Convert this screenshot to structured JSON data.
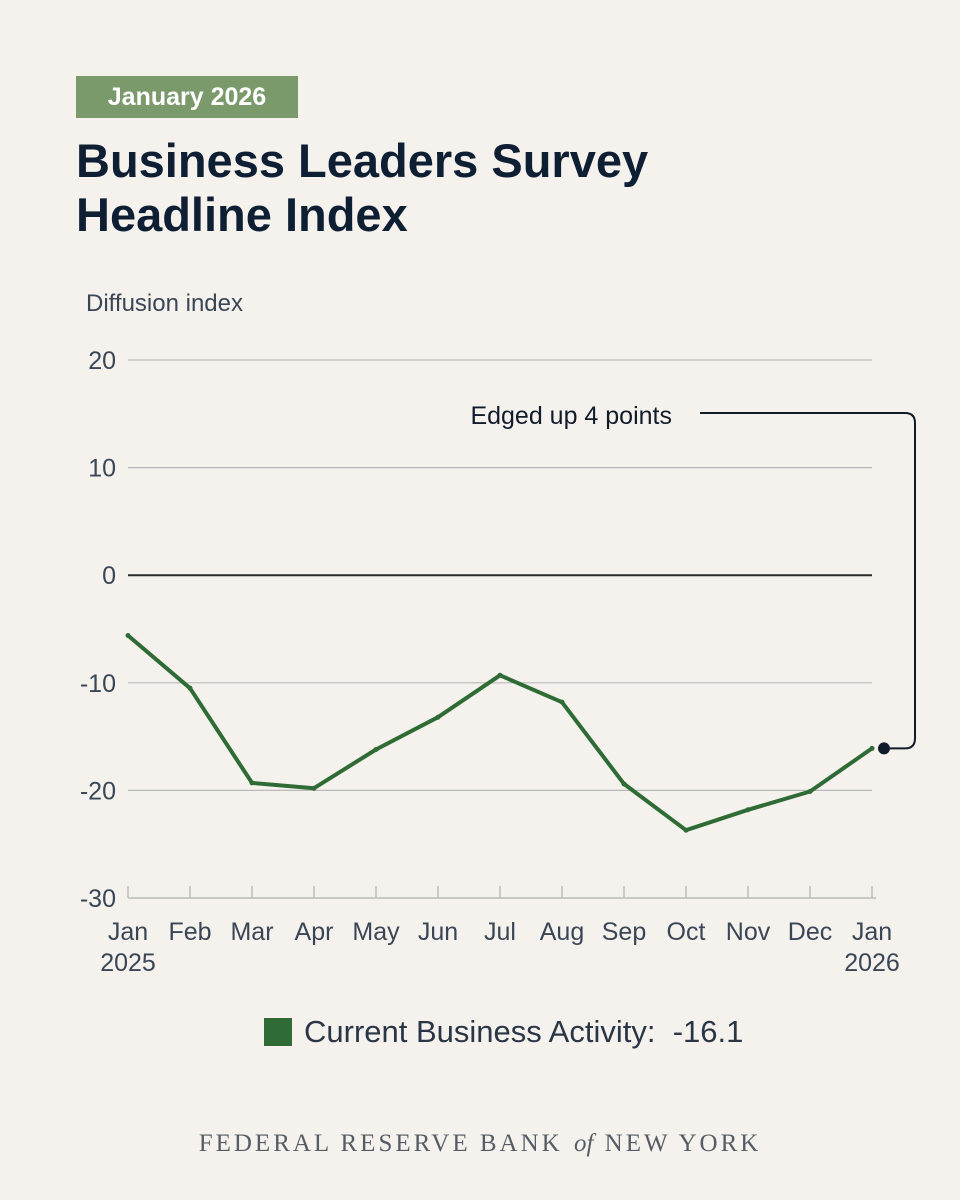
{
  "header": {
    "badge": "January 2026",
    "title_line1": "Business Leaders Survey",
    "title_line2": "Headline Index"
  },
  "chart_data": {
    "type": "line",
    "ylabel": "Diffusion index",
    "ylim": [
      -30,
      20
    ],
    "yticks": [
      20,
      10,
      0,
      -10,
      -20,
      -30
    ],
    "grid": true,
    "x": [
      "Jan 2025",
      "Feb",
      "Mar",
      "Apr",
      "May",
      "Jun",
      "Jul",
      "Aug",
      "Sep",
      "Oct",
      "Nov",
      "Dec",
      "Jan 2026"
    ],
    "tick_labels": [
      [
        "Jan",
        "2025"
      ],
      [
        "Feb"
      ],
      [
        "Mar"
      ],
      [
        "Apr"
      ],
      [
        "May"
      ],
      [
        "Jun"
      ],
      [
        "Jul"
      ],
      [
        "Aug"
      ],
      [
        "Sep"
      ],
      [
        "Oct"
      ],
      [
        "Nov"
      ],
      [
        "Dec"
      ],
      [
        "Jan",
        "2026"
      ]
    ],
    "series": [
      {
        "name": "Current Business Activity",
        "color": "#2f6b34",
        "values": [
          -5.6,
          -10.5,
          -19.3,
          -19.8,
          -16.2,
          -13.2,
          -9.3,
          -11.8,
          -19.4,
          -23.7,
          -21.8,
          -20.1,
          -16.1
        ]
      }
    ],
    "annotation": {
      "text": "Edged up 4 points",
      "point_index": 12
    }
  },
  "legend": {
    "label": "Current Business Activity:",
    "value": "-16.1"
  },
  "footer": {
    "left": "FEDERAL RESERVE BANK",
    "of": "of",
    "right": "NEW YORK"
  }
}
